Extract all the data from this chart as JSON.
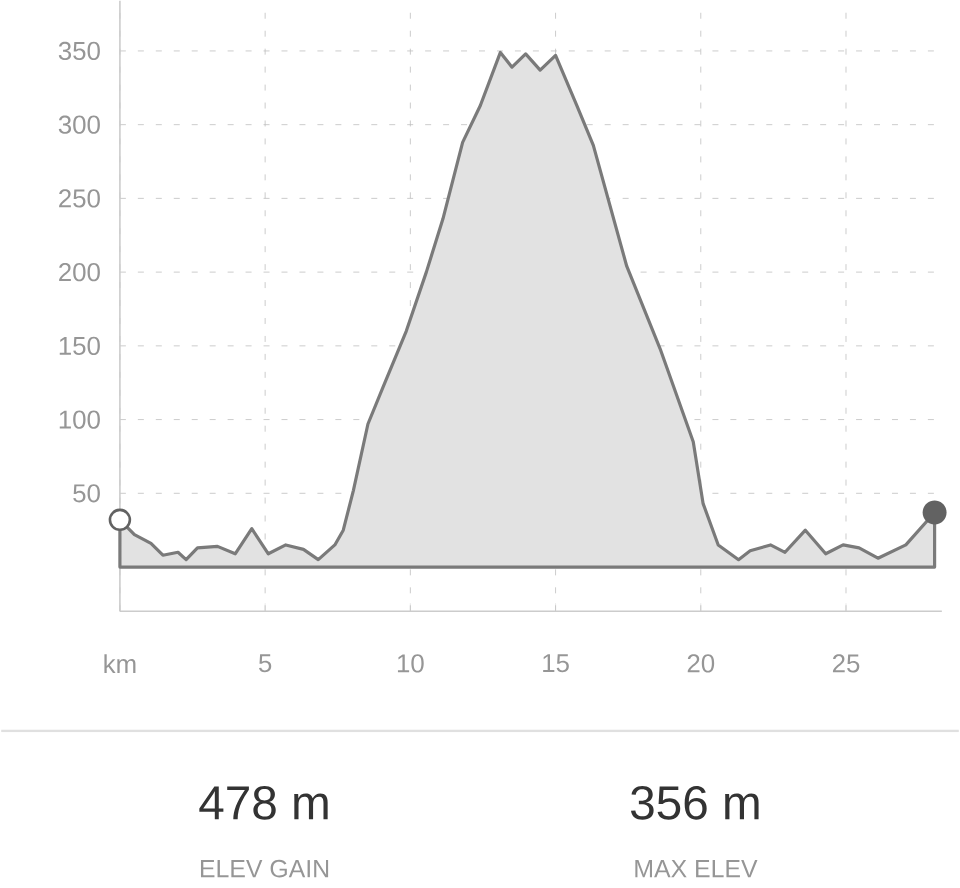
{
  "chart_data": {
    "type": "area",
    "color": "#7a7a7a",
    "x": [
      0,
      0.5,
      1.07,
      1.48,
      2.0,
      2.28,
      2.67,
      3.36,
      3.97,
      4.54,
      5.11,
      5.71,
      6.32,
      6.83,
      7.4,
      7.69,
      8.04,
      8.54,
      9.06,
      9.86,
      10.55,
      11.12,
      11.8,
      12.41,
      13.1,
      13.5,
      13.97,
      14.47,
      15.0,
      15.73,
      16.3,
      17.45,
      18.6,
      19.74,
      20.08,
      20.6,
      21.3,
      21.7,
      22.4,
      22.9,
      23.6,
      24.3,
      24.9,
      25.45,
      26.1,
      27.06,
      28.05
    ],
    "values": [
      32,
      22,
      16,
      8,
      10,
      5,
      13,
      14,
      9,
      26,
      9,
      15,
      12,
      5,
      15,
      25,
      52,
      97,
      122,
      160,
      200,
      236,
      288,
      313,
      349,
      339,
      348,
      337,
      347,
      313,
      286,
      204,
      148,
      85,
      43,
      15,
      5,
      11,
      15,
      10,
      25,
      9,
      15,
      13,
      6,
      15,
      37
    ],
    "xlim": [
      0,
      28.3
    ],
    "ylim": [
      -30,
      384
    ],
    "xticks": [
      {
        "value": 0,
        "label": "km"
      },
      5,
      10,
      15,
      20,
      25
    ],
    "yticks": [
      {
        "value": 0,
        "label": null
      },
      50,
      100,
      150,
      200,
      250,
      300,
      350
    ],
    "grid": true,
    "annotations": [
      "478 m",
      "ELEV GAIN",
      "356 m",
      "MAX ELEV"
    ]
  }
}
